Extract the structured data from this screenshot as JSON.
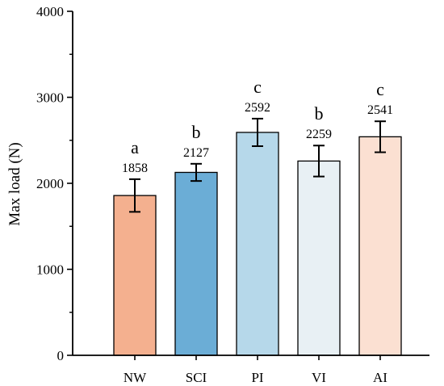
{
  "chart_data": {
    "type": "bar",
    "title": "",
    "xlabel": "",
    "ylabel": "Max load (N)",
    "ylim": [
      0,
      4000
    ],
    "yticks": [
      0,
      1000,
      2000,
      3000,
      4000
    ],
    "grid": false,
    "categories": [
      "NW",
      "SCI",
      "PI",
      "VI",
      "AI"
    ],
    "values": [
      1858,
      2127,
      2592,
      2259,
      2541
    ],
    "errors": [
      190,
      100,
      160,
      180,
      180
    ],
    "significance": [
      "a",
      "b",
      "c",
      "b",
      "c"
    ],
    "colors": [
      "#f4b08f",
      "#6badd6",
      "#b6d8ea",
      "#e8f0f4",
      "#fbe0d2"
    ]
  }
}
